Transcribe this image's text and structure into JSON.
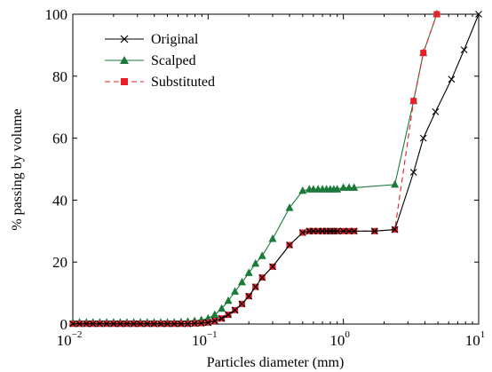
{
  "chart_data": {
    "type": "line",
    "title": "",
    "xlabel": "Particles diameter (mm)",
    "ylabel": "% passing by volume",
    "xscale": "log",
    "xlim": [
      0.01,
      10
    ],
    "ylim": [
      0,
      100
    ],
    "x_ticks": [
      {
        "base": "10",
        "exp": "−2",
        "value": 0.01
      },
      {
        "base": "10",
        "exp": "−1",
        "value": 0.1
      },
      {
        "base": "10",
        "exp": "0",
        "value": 1
      },
      {
        "base": "10",
        "exp": "1",
        "value": 10
      }
    ],
    "y_ticks": [
      "0",
      "20",
      "40",
      "60",
      "80",
      "100"
    ],
    "grid": false,
    "legend_position": "top-left",
    "series": [
      {
        "name": "Original",
        "color": "#000000",
        "marker": "x",
        "line": "solid",
        "x": [
          0.01,
          0.0112,
          0.0126,
          0.0141,
          0.0158,
          0.0178,
          0.02,
          0.0224,
          0.0251,
          0.0282,
          0.0316,
          0.0355,
          0.0398,
          0.0447,
          0.0501,
          0.0562,
          0.0631,
          0.0708,
          0.0794,
          0.0891,
          0.1,
          0.112,
          0.126,
          0.141,
          0.158,
          0.178,
          0.2,
          0.224,
          0.251,
          0.3,
          0.4,
          0.5,
          0.56,
          0.6,
          0.65,
          0.7,
          0.75,
          0.8,
          0.85,
          0.9,
          1.0,
          1.1,
          1.2,
          1.7,
          2.4,
          3.3,
          3.9,
          4.8,
          6.3,
          7.8,
          10
        ],
        "y": [
          0.1,
          0.1,
          0.1,
          0.1,
          0.1,
          0.1,
          0.1,
          0.1,
          0.1,
          0.1,
          0.1,
          0.1,
          0.1,
          0.1,
          0.1,
          0.1,
          0.1,
          0.1,
          0.2,
          0.3,
          0.5,
          1,
          1.8,
          3,
          4.5,
          6.5,
          9,
          12,
          15,
          18.5,
          25.5,
          29.5,
          30,
          30,
          30,
          30,
          30,
          30,
          30,
          30,
          30,
          30,
          30,
          30,
          30.5,
          49,
          60,
          68.5,
          79,
          88.5,
          100
        ]
      },
      {
        "name": "Scalped",
        "color": "#1b7a3a",
        "marker": "triangle",
        "line": "solid",
        "x": [
          0.01,
          0.0112,
          0.0126,
          0.0141,
          0.0158,
          0.0178,
          0.02,
          0.0224,
          0.0251,
          0.0282,
          0.0316,
          0.0355,
          0.0398,
          0.0447,
          0.0501,
          0.0562,
          0.0631,
          0.0708,
          0.0794,
          0.0891,
          0.1,
          0.112,
          0.126,
          0.141,
          0.158,
          0.178,
          0.2,
          0.224,
          0.251,
          0.3,
          0.4,
          0.5,
          0.56,
          0.6,
          0.65,
          0.7,
          0.75,
          0.8,
          0.85,
          0.9,
          1.0,
          1.1,
          1.2,
          2.4,
          3.3,
          3.9,
          4.9
        ],
        "y": [
          0.5,
          0.5,
          0.5,
          0.5,
          0.5,
          0.5,
          0.5,
          0.5,
          0.5,
          0.5,
          0.5,
          0.5,
          0.5,
          0.5,
          0.5,
          0.5,
          0.6,
          0.8,
          1,
          1.3,
          1.8,
          3,
          5,
          7.5,
          10.5,
          13.5,
          16.5,
          19.5,
          22,
          27.5,
          37.5,
          43,
          43.5,
          43.5,
          43.5,
          43.5,
          43.5,
          43.5,
          43.5,
          43.5,
          44,
          44,
          44,
          45,
          72,
          87.5,
          100
        ]
      },
      {
        "name": "Substituted",
        "color": "#e8202a",
        "marker": "square",
        "line": "dashed",
        "x": [
          0.01,
          0.0112,
          0.0126,
          0.0141,
          0.0158,
          0.0178,
          0.02,
          0.0224,
          0.0251,
          0.0282,
          0.0316,
          0.0355,
          0.0398,
          0.0447,
          0.0501,
          0.0562,
          0.0631,
          0.0708,
          0.0794,
          0.0891,
          0.1,
          0.112,
          0.126,
          0.141,
          0.158,
          0.178,
          0.2,
          0.224,
          0.251,
          0.3,
          0.4,
          0.5,
          0.56,
          0.6,
          0.65,
          0.7,
          0.75,
          0.8,
          0.85,
          0.9,
          1.0,
          1.1,
          1.2,
          1.7,
          2.4,
          3.3,
          3.9,
          4.9
        ],
        "y": [
          0.1,
          0.1,
          0.1,
          0.1,
          0.1,
          0.1,
          0.1,
          0.1,
          0.1,
          0.1,
          0.1,
          0.1,
          0.1,
          0.1,
          0.1,
          0.1,
          0.1,
          0.1,
          0.2,
          0.3,
          0.5,
          1,
          1.8,
          3,
          4.5,
          6.5,
          9,
          12,
          15,
          18.5,
          25.5,
          29.5,
          30,
          30,
          30,
          30,
          30,
          30,
          30,
          30,
          30,
          30,
          30,
          30,
          30.5,
          72,
          87.5,
          100
        ]
      }
    ]
  }
}
